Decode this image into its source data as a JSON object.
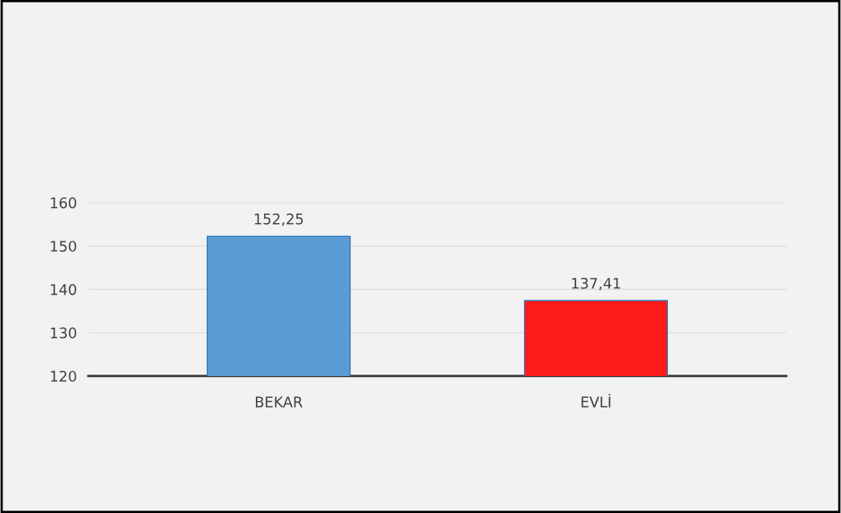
{
  "chart_data": {
    "type": "bar",
    "categories": [
      "BEKAR",
      "EVLİ"
    ],
    "values": [
      152.25,
      137.41
    ],
    "colors": [
      "#5b9bd5",
      "#ff1a1a"
    ],
    "value_labels": [
      "152,25",
      "137,41"
    ],
    "ylim": [
      120,
      160
    ],
    "yticks": [
      120,
      130,
      140,
      150,
      160
    ],
    "grid": "y"
  }
}
